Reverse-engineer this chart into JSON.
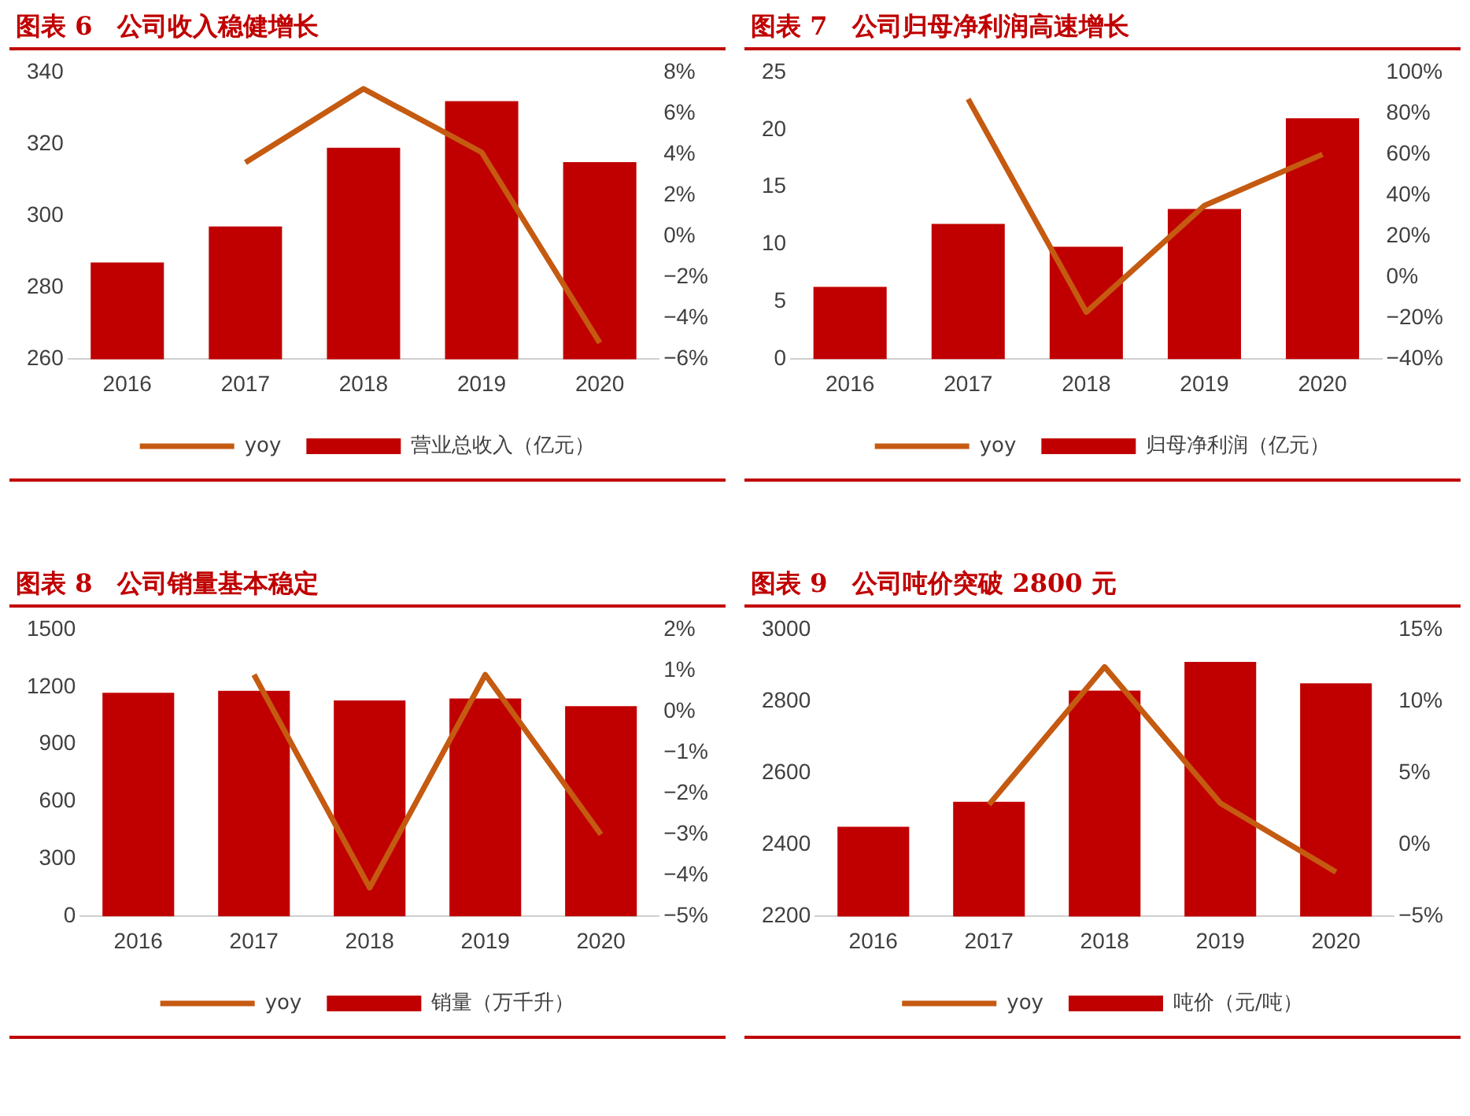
{
  "chart_data": [
    {
      "type": "bar",
      "title": "图表 6　公司收入稳健增长",
      "categories": [
        "2016",
        "2017",
        "2018",
        "2019",
        "2020"
      ],
      "series": [
        {
          "name": "营业总收入（亿元）",
          "color": "#c00000",
          "values": [
            287,
            297,
            319,
            332,
            315
          ]
        },
        {
          "name": "yoy",
          "type": "line",
          "axis": "y2",
          "color": "#c55a11",
          "values": [
            null,
            3.6,
            7.2,
            4.1,
            -5.2
          ]
        }
      ],
      "ylim": [
        260,
        340
      ],
      "yticks": [
        260,
        280,
        300,
        320,
        340
      ],
      "y2lim": [
        -6,
        8
      ],
      "y2ticks": [
        {
          "value": -6,
          "label": "−6%"
        },
        {
          "value": -4,
          "label": "−4%"
        },
        {
          "value": -2,
          "label": "−2%"
        },
        {
          "value": 0,
          "label": "0%"
        },
        {
          "value": 2,
          "label": "2%"
        },
        {
          "value": 4,
          "label": "4%"
        },
        {
          "value": 6,
          "label": "6%"
        },
        {
          "value": 8,
          "label": "8%"
        }
      ],
      "legend": "bottom",
      "grid": false,
      "marker": "none"
    },
    {
      "type": "bar",
      "title": "图表 7　公司归母净利润高速增长",
      "categories": [
        "2016",
        "2017",
        "2018",
        "2019",
        "2020"
      ],
      "series": [
        {
          "name": "归母净利润（亿元）",
          "color": "#c00000",
          "values": [
            6.3,
            11.8,
            9.8,
            13.1,
            21.0
          ]
        },
        {
          "name": "yoy",
          "type": "line",
          "axis": "y2",
          "color": "#c55a11",
          "values": [
            null,
            87,
            -17,
            35,
            60
          ]
        }
      ],
      "ylim": [
        0,
        25
      ],
      "yticks": [
        0,
        5,
        10,
        15,
        20,
        25
      ],
      "y2lim": [
        -40,
        100
      ],
      "y2ticks": [
        {
          "value": -40,
          "label": "−40%"
        },
        {
          "value": -20,
          "label": "−20%"
        },
        {
          "value": 0,
          "label": "0%"
        },
        {
          "value": 20,
          "label": "20%"
        },
        {
          "value": 40,
          "label": "40%"
        },
        {
          "value": 60,
          "label": "60%"
        },
        {
          "value": 80,
          "label": "80%"
        },
        {
          "value": 100,
          "label": "100%"
        }
      ],
      "legend": "bottom",
      "grid": false,
      "marker": "none"
    },
    {
      "type": "bar",
      "title": "图表 8　公司销量基本稳定",
      "categories": [
        "2016",
        "2017",
        "2018",
        "2019",
        "2020"
      ],
      "series": [
        {
          "name": "销量（万千升）",
          "color": "#c00000",
          "values": [
            1170,
            1180,
            1130,
            1140,
            1100
          ]
        },
        {
          "name": "yoy",
          "type": "line",
          "axis": "y2",
          "color": "#c55a11",
          "values": [
            null,
            0.9,
            -4.3,
            0.9,
            -3.0
          ]
        }
      ],
      "ylim": [
        0,
        1500
      ],
      "yticks": [
        0,
        300,
        600,
        900,
        1200,
        1500
      ],
      "y2lim": [
        -5,
        2
      ],
      "y2ticks": [
        {
          "value": -5,
          "label": "−5%"
        },
        {
          "value": -4,
          "label": "−4%"
        },
        {
          "value": -3,
          "label": "−3%"
        },
        {
          "value": -2,
          "label": "−2%"
        },
        {
          "value": -1,
          "label": "−1%"
        },
        {
          "value": 0,
          "label": "0%"
        },
        {
          "value": 1,
          "label": "1%"
        },
        {
          "value": 2,
          "label": "2%"
        }
      ],
      "legend": "bottom",
      "grid": false,
      "marker": "none"
    },
    {
      "type": "bar",
      "title": "图表 9　公司吨价突破 2800 元",
      "categories": [
        "2016",
        "2017",
        "2018",
        "2019",
        "2020"
      ],
      "series": [
        {
          "name": "吨价（元/吨）",
          "color": "#c00000",
          "values": [
            2450,
            2520,
            2830,
            2910,
            2850
          ]
        },
        {
          "name": "yoy",
          "type": "line",
          "axis": "y2",
          "color": "#c55a11",
          "values": [
            null,
            2.8,
            12.4,
            2.9,
            -1.9
          ]
        }
      ],
      "ylim": [
        2200,
        3000
      ],
      "yticks": [
        2200,
        2400,
        2600,
        2800,
        3000
      ],
      "y2lim": [
        -5,
        15
      ],
      "y2ticks": [
        {
          "value": -5,
          "label": "−5%"
        },
        {
          "value": 0,
          "label": "0%"
        },
        {
          "value": 5,
          "label": "5%"
        },
        {
          "value": 10,
          "label": "10%"
        },
        {
          "value": 15,
          "label": "15%"
        }
      ],
      "legend": "bottom",
      "grid": false,
      "marker": "none"
    }
  ]
}
